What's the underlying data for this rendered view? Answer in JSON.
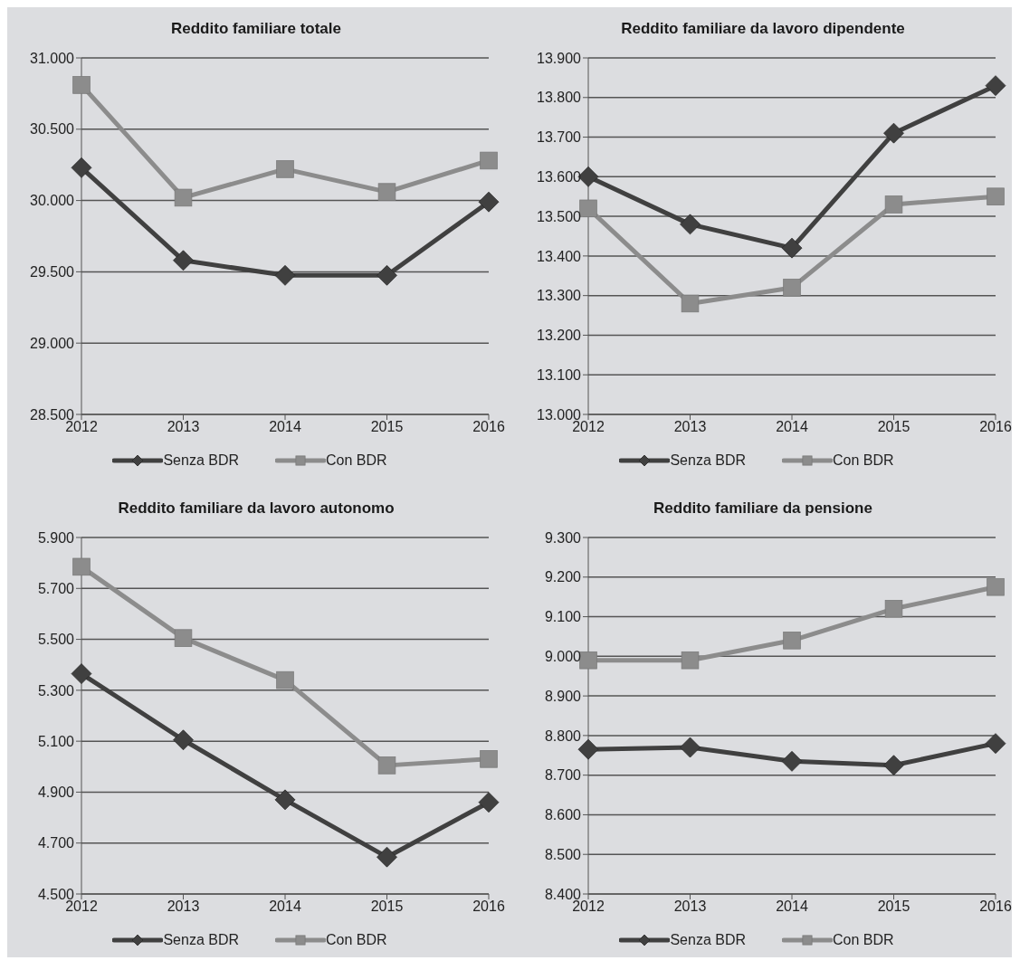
{
  "chart_data": [
    {
      "type": "line",
      "title": "Reddito familiare totale",
      "categories": [
        "2012",
        "2013",
        "2014",
        "2015",
        "2016"
      ],
      "ylim": [
        28500,
        31000
      ],
      "yticks": [
        {
          "value": 28500,
          "label": "28.500"
        },
        {
          "value": 29000,
          "label": "29.000"
        },
        {
          "value": 29500,
          "label": "29.500"
        },
        {
          "value": 30000,
          "label": "30.000"
        },
        {
          "value": 30500,
          "label": "30.500"
        },
        {
          "value": 31000,
          "label": "31.000"
        }
      ],
      "grid": "y",
      "legend": "bottom",
      "line_style": "solid",
      "series": [
        {
          "name": "Senza BDR",
          "color": "#404040",
          "marker": "diamond",
          "values": [
            30230,
            29580,
            29475,
            29475,
            29990
          ]
        },
        {
          "name": "Con BDR",
          "color": "#8c8c8c",
          "marker": "square",
          "values": [
            30810,
            30020,
            30220,
            30060,
            30280
          ]
        }
      ]
    },
    {
      "type": "line",
      "title": "Reddito familiare da lavoro dipendente",
      "categories": [
        "2012",
        "2013",
        "2014",
        "2015",
        "2016"
      ],
      "ylim": [
        13000,
        13900
      ],
      "yticks": [
        {
          "value": 13000,
          "label": "13.000"
        },
        {
          "value": 13100,
          "label": "13.100"
        },
        {
          "value": 13200,
          "label": "13.200"
        },
        {
          "value": 13300,
          "label": "13.300"
        },
        {
          "value": 13400,
          "label": "13.400"
        },
        {
          "value": 13500,
          "label": "13.500"
        },
        {
          "value": 13600,
          "label": "13.600"
        },
        {
          "value": 13700,
          "label": "13.700"
        },
        {
          "value": 13800,
          "label": "13.800"
        },
        {
          "value": 13900,
          "label": "13.900"
        }
      ],
      "grid": "y",
      "legend": "bottom",
      "line_style": "solid",
      "series": [
        {
          "name": "Senza BDR",
          "color": "#404040",
          "marker": "diamond",
          "values": [
            13600,
            13480,
            13420,
            13710,
            13830
          ]
        },
        {
          "name": "Con BDR",
          "color": "#8c8c8c",
          "marker": "square",
          "values": [
            13520,
            13280,
            13320,
            13530,
            13550
          ]
        }
      ]
    },
    {
      "type": "line",
      "title": "Reddito familiare da lavoro autonomo",
      "categories": [
        "2012",
        "2013",
        "2014",
        "2015",
        "2016"
      ],
      "ylim": [
        4500,
        5900
      ],
      "yticks": [
        {
          "value": 4500,
          "label": "4.500"
        },
        {
          "value": 4700,
          "label": "4.700"
        },
        {
          "value": 4900,
          "label": "4.900"
        },
        {
          "value": 5100,
          "label": "5.100"
        },
        {
          "value": 5300,
          "label": "5.300"
        },
        {
          "value": 5500,
          "label": "5.500"
        },
        {
          "value": 5700,
          "label": "5.700"
        },
        {
          "value": 5900,
          "label": "5.900"
        }
      ],
      "grid": "y",
      "legend": "bottom",
      "line_style": "solid",
      "series": [
        {
          "name": "Senza BDR",
          "color": "#404040",
          "marker": "diamond",
          "values": [
            5365,
            5105,
            4870,
            4645,
            4860
          ]
        },
        {
          "name": "Con BDR",
          "color": "#8c8c8c",
          "marker": "square",
          "values": [
            5785,
            5505,
            5340,
            5005,
            5030
          ]
        }
      ]
    },
    {
      "type": "line",
      "title": "Reddito familiare da pensione",
      "categories": [
        "2012",
        "2013",
        "2014",
        "2015",
        "2016"
      ],
      "ylim": [
        8400,
        9300
      ],
      "yticks": [
        {
          "value": 8400,
          "label": "8.400"
        },
        {
          "value": 8500,
          "label": "8.500"
        },
        {
          "value": 8600,
          "label": "8.600"
        },
        {
          "value": 8700,
          "label": "8.700"
        },
        {
          "value": 8800,
          "label": "8.800"
        },
        {
          "value": 8900,
          "label": "8.900"
        },
        {
          "value": 9000,
          "label": "9.000"
        },
        {
          "value": 9100,
          "label": "9.100"
        },
        {
          "value": 9200,
          "label": "9.200"
        },
        {
          "value": 9300,
          "label": "9.300"
        }
      ],
      "grid": "y",
      "legend": "bottom",
      "line_style": "solid",
      "series": [
        {
          "name": "Senza BDR",
          "color": "#404040",
          "marker": "diamond",
          "values": [
            8765,
            8770,
            8735,
            8725,
            8780
          ]
        },
        {
          "name": "Con BDR",
          "color": "#8c8c8c",
          "marker": "square",
          "values": [
            8990,
            8990,
            9040,
            9120,
            9175
          ]
        }
      ]
    }
  ]
}
